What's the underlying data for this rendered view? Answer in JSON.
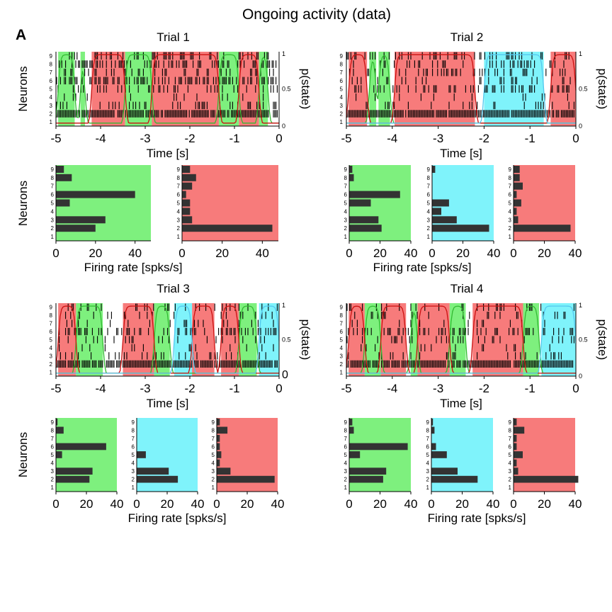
{
  "figure": {
    "title": "Ongoing activity (data)",
    "panel_label": "A"
  },
  "colors": {
    "green": "#7ef07e",
    "red": "#f77b7b",
    "cyan": "#7ff3fb",
    "bar": "#333333",
    "line_green": "#33bb33",
    "line_red": "#cc1111",
    "line_cyan": "#55c8ee"
  },
  "chart_data": [
    {
      "type": "raster",
      "title": "Trial 1",
      "xlabel": "Time [s]",
      "ylabel": "Neurons",
      "y2label": "p(state)",
      "xlim": [
        -5,
        0
      ],
      "xticks": [
        "-5",
        "-4",
        "-3",
        "-2",
        "-1",
        "0"
      ],
      "yticks": [
        "1",
        "2",
        "3",
        "4",
        "5",
        "6",
        "7",
        "8",
        "9"
      ],
      "y2ticks": [
        "0",
        "0.5",
        "1"
      ],
      "states": [
        {
          "start": -4.95,
          "end": -4.58,
          "state": "green"
        },
        {
          "start": -4.45,
          "end": -4.35,
          "state": "green"
        },
        {
          "start": -4.2,
          "end": -3.45,
          "state": "red"
        },
        {
          "start": -3.45,
          "end": -2.85,
          "state": "green"
        },
        {
          "start": -2.85,
          "end": -1.35,
          "state": "red"
        },
        {
          "start": -1.35,
          "end": -0.9,
          "state": "green"
        },
        {
          "start": -0.9,
          "end": -0.45,
          "state": "red"
        },
        {
          "start": -0.45,
          "end": -0.25,
          "state": "green"
        }
      ]
    },
    {
      "type": "raster",
      "title": "Trial 2",
      "xlabel": "Time [s]",
      "ylabel": "",
      "y2label": "p(state)",
      "xlim": [
        -5,
        0
      ],
      "xticks": [
        "-5",
        "-4",
        "-3",
        "-2",
        "-1",
        "0"
      ],
      "yticks": [
        "1",
        "2",
        "3",
        "4",
        "5",
        "6",
        "7",
        "8",
        "9"
      ],
      "y2ticks": [
        "0",
        "0.5",
        "1"
      ],
      "states": [
        {
          "start": -4.95,
          "end": -4.55,
          "state": "red"
        },
        {
          "start": -4.5,
          "end": -4.35,
          "state": "green"
        },
        {
          "start": -4.3,
          "end": -4.05,
          "state": "green"
        },
        {
          "start": -3.95,
          "end": -2.2,
          "state": "red"
        },
        {
          "start": -2.0,
          "end": -0.7,
          "state": "cyan"
        },
        {
          "start": -0.55,
          "end": 0.0,
          "state": "red"
        }
      ]
    },
    {
      "type": "raster",
      "title": "Trial 3",
      "xlabel": "Time [s]",
      "ylabel": "",
      "y2label": "p(state)",
      "xlim": [
        -5,
        0
      ],
      "xticks": [
        "-5",
        "-4",
        "-3",
        "-2",
        "-1",
        "0"
      ],
      "yticks": [
        "1",
        "2",
        "3",
        "4",
        "5",
        "6",
        "7",
        "8",
        "9"
      ],
      "y2ticks": [
        "0",
        "0.5",
        "1"
      ],
      "states": [
        {
          "start": -4.95,
          "end": -4.55,
          "state": "red"
        },
        {
          "start": -4.55,
          "end": -3.95,
          "state": "green"
        },
        {
          "start": -3.5,
          "end": -2.8,
          "state": "red"
        },
        {
          "start": -2.8,
          "end": -2.45,
          "state": "green"
        },
        {
          "start": -2.35,
          "end": -1.95,
          "state": "cyan"
        },
        {
          "start": -1.95,
          "end": -1.45,
          "state": "red"
        },
        {
          "start": -1.3,
          "end": -0.9,
          "state": "red"
        },
        {
          "start": -0.9,
          "end": -0.5,
          "state": "green"
        },
        {
          "start": -0.45,
          "end": 0.0,
          "state": "cyan"
        }
      ]
    },
    {
      "type": "raster",
      "title": "Trial 4",
      "xlabel": "Time [s]",
      "ylabel": "",
      "y2label": "p(state)",
      "xlim": [
        -5,
        0
      ],
      "xticks": [
        "-5",
        "-4",
        "-3",
        "-2",
        "-1",
        "0"
      ],
      "yticks": [
        "1",
        "2",
        "3",
        "4",
        "5",
        "6",
        "7",
        "8",
        "9"
      ],
      "y2ticks": [
        "0",
        "0.5",
        "1"
      ],
      "states": [
        {
          "start": -4.95,
          "end": -4.6,
          "state": "red"
        },
        {
          "start": -4.6,
          "end": -4.25,
          "state": "green"
        },
        {
          "start": -4.25,
          "end": -3.7,
          "state": "red"
        },
        {
          "start": -3.6,
          "end": -3.45,
          "state": "green"
        },
        {
          "start": -3.45,
          "end": -2.75,
          "state": "red"
        },
        {
          "start": -2.75,
          "end": -2.4,
          "state": "green"
        },
        {
          "start": -2.25,
          "end": -1.15,
          "state": "red"
        },
        {
          "start": -1.15,
          "end": -0.8,
          "state": "green"
        },
        {
          "start": -0.75,
          "end": 0.0,
          "state": "cyan"
        }
      ]
    },
    {
      "type": "bar",
      "orientation": "horizontal",
      "group": "Trial 1",
      "state": "green",
      "ylabel": "Neurons",
      "xlabel": "Firing rate [spks/s]",
      "xlim": [
        0,
        48
      ],
      "xticks": [
        "0",
        "20",
        "40"
      ],
      "categories": [
        "1",
        "2",
        "3",
        "4",
        "5",
        "6",
        "7",
        "8",
        "9"
      ],
      "values": [
        0,
        20,
        25,
        0,
        7,
        40,
        0,
        8,
        4
      ]
    },
    {
      "type": "bar",
      "orientation": "horizontal",
      "group": "Trial 1",
      "state": "red",
      "ylabel": "",
      "xlabel": "",
      "xlim": [
        0,
        48
      ],
      "xticks": [
        "0",
        "20",
        "40"
      ],
      "categories": [
        "1",
        "2",
        "3",
        "4",
        "5",
        "6",
        "7",
        "8",
        "9"
      ],
      "values": [
        0,
        45,
        5,
        4,
        4,
        2,
        5,
        7,
        4
      ]
    },
    {
      "type": "bar",
      "orientation": "horizontal",
      "group": "Trial 2",
      "state": "green",
      "ylabel": "",
      "xlabel": "Firing rate [spks/s]",
      "xlim": [
        0,
        40
      ],
      "xticks": [
        "0",
        "20",
        "40"
      ],
      "categories": [
        "1",
        "2",
        "3",
        "4",
        "5",
        "6",
        "7",
        "8",
        "9"
      ],
      "values": [
        0,
        21,
        19,
        0,
        14,
        33,
        0,
        3,
        2
      ]
    },
    {
      "type": "bar",
      "orientation": "horizontal",
      "group": "Trial 2",
      "state": "cyan",
      "ylabel": "",
      "xlabel": "",
      "xlim": [
        0,
        40
      ],
      "xticks": [
        "0",
        "20",
        "40"
      ],
      "categories": [
        "1",
        "2",
        "3",
        "4",
        "5",
        "6",
        "7",
        "8",
        "9"
      ],
      "values": [
        0,
        37,
        16,
        6,
        11,
        0,
        0,
        0,
        2
      ]
    },
    {
      "type": "bar",
      "orientation": "horizontal",
      "group": "Trial 2",
      "state": "red",
      "ylabel": "",
      "xlabel": "",
      "xlim": [
        0,
        40
      ],
      "xticks": [
        "0",
        "20",
        "40"
      ],
      "categories": [
        "1",
        "2",
        "3",
        "4",
        "5",
        "6",
        "7",
        "8",
        "9"
      ],
      "values": [
        0,
        37,
        3,
        2,
        5,
        2,
        6,
        4,
        4
      ]
    },
    {
      "type": "bar",
      "orientation": "horizontal",
      "group": "Trial 3",
      "state": "green",
      "ylabel": "Neurons",
      "xlabel": "Firing rate [spks/s]",
      "xlim": [
        0,
        40
      ],
      "xticks": [
        "0",
        "20",
        "40"
      ],
      "categories": [
        "1",
        "2",
        "3",
        "4",
        "5",
        "6",
        "7",
        "8",
        "9"
      ],
      "values": [
        0,
        22,
        24,
        0,
        4,
        33,
        0,
        5,
        1
      ]
    },
    {
      "type": "bar",
      "orientation": "horizontal",
      "group": "Trial 3",
      "state": "cyan",
      "ylabel": "",
      "xlabel": "",
      "xlim": [
        0,
        40
      ],
      "xticks": [
        "0",
        "20",
        "40"
      ],
      "categories": [
        "1",
        "2",
        "3",
        "4",
        "5",
        "6",
        "7",
        "8",
        "9"
      ],
      "values": [
        0,
        27,
        21,
        0,
        6,
        0,
        0,
        0,
        0
      ]
    },
    {
      "type": "bar",
      "orientation": "horizontal",
      "group": "Trial 3",
      "state": "red",
      "ylabel": "",
      "xlabel": "",
      "xlim": [
        0,
        40
      ],
      "xticks": [
        "0",
        "20",
        "40"
      ],
      "categories": [
        "1",
        "2",
        "3",
        "4",
        "5",
        "6",
        "7",
        "8",
        "9"
      ],
      "values": [
        0,
        38,
        9,
        2,
        3,
        2,
        2,
        7,
        2
      ]
    },
    {
      "type": "bar",
      "orientation": "horizontal",
      "group": "Trial 4",
      "state": "green",
      "ylabel": "Neurons",
      "xlabel": "Firing rate [spks/s]",
      "xlim": [
        0,
        40
      ],
      "xticks": [
        "0",
        "20",
        "40"
      ],
      "categories": [
        "1",
        "2",
        "3",
        "4",
        "5",
        "6",
        "7",
        "8",
        "9"
      ],
      "values": [
        0,
        22,
        24,
        0,
        7,
        38,
        0,
        3,
        2
      ]
    },
    {
      "type": "bar",
      "orientation": "horizontal",
      "group": "Trial 4",
      "state": "cyan",
      "ylabel": "",
      "xlabel": "",
      "xlim": [
        0,
        40
      ],
      "xticks": [
        "0",
        "20",
        "40"
      ],
      "categories": [
        "1",
        "2",
        "3",
        "4",
        "5",
        "6",
        "7",
        "8",
        "9"
      ],
      "values": [
        0,
        30,
        17,
        0,
        10,
        3,
        0,
        2,
        1
      ]
    },
    {
      "type": "bar",
      "orientation": "horizontal",
      "group": "Trial 4",
      "state": "red",
      "ylabel": "",
      "xlabel": "",
      "xlim": [
        0,
        40
      ],
      "xticks": [
        "0",
        "20",
        "40"
      ],
      "categories": [
        "1",
        "2",
        "3",
        "4",
        "5",
        "6",
        "7",
        "8",
        "9"
      ],
      "values": [
        0,
        42,
        3,
        2,
        6,
        2,
        2,
        7,
        2
      ]
    }
  ]
}
